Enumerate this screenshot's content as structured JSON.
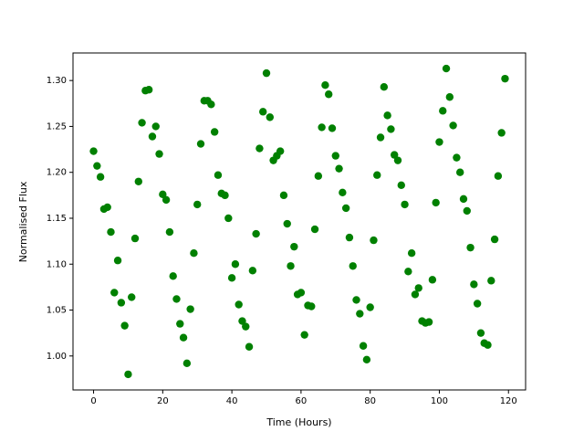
{
  "chart_data": {
    "type": "scatter",
    "xlabel": "Time (Hours)",
    "ylabel": "Normalised Flux",
    "color": "green",
    "x": [
      0,
      1,
      2,
      3,
      4,
      5,
      6,
      7,
      8,
      9,
      10,
      11,
      12,
      13,
      14,
      15,
      16,
      17,
      18,
      19,
      20,
      21,
      22,
      23,
      24,
      25,
      26,
      27,
      28,
      29,
      30,
      31,
      32,
      33,
      34,
      35,
      36,
      37,
      38,
      39,
      40,
      41,
      42,
      43,
      44,
      45,
      46,
      47,
      48,
      49,
      50,
      51,
      52,
      53,
      54,
      55,
      56,
      57,
      58,
      59,
      60,
      61,
      62,
      63,
      64,
      65,
      66,
      67,
      68,
      69,
      70,
      71,
      72,
      73,
      74,
      75,
      76,
      77,
      78,
      79,
      80,
      81,
      82,
      83,
      84,
      85,
      86,
      87,
      88,
      89,
      90,
      91,
      92,
      93,
      94,
      95,
      96,
      97,
      98,
      99,
      100,
      101,
      102,
      103,
      104,
      105,
      106,
      107,
      108,
      109,
      110,
      111,
      112,
      113,
      114,
      115,
      116,
      117,
      118,
      119
    ],
    "values": [
      1.223,
      1.207,
      1.195,
      1.16,
      1.162,
      1.135,
      1.069,
      1.104,
      1.058,
      1.033,
      0.98,
      1.064,
      1.128,
      1.19,
      1.254,
      1.289,
      1.29,
      1.239,
      1.25,
      1.22,
      1.176,
      1.17,
      1.135,
      1.087,
      1.062,
      1.035,
      1.02,
      0.992,
      1.051,
      1.112,
      1.165,
      1.231,
      1.278,
      1.278,
      1.274,
      1.244,
      1.197,
      1.177,
      1.175,
      1.15,
      1.085,
      1.1,
      1.056,
      1.038,
      1.032,
      1.01,
      1.093,
      1.133,
      1.226,
      1.266,
      1.308,
      1.26,
      1.213,
      1.218,
      1.223,
      1.175,
      1.144,
      1.098,
      1.119,
      1.067,
      1.069,
      1.023,
      1.055,
      1.054,
      1.138,
      1.196,
      1.249,
      1.295,
      1.285,
      1.248,
      1.218,
      1.204,
      1.178,
      1.161,
      1.129,
      1.098,
      1.061,
      1.046,
      1.011,
      0.996,
      1.053,
      1.126,
      1.197,
      1.238,
      1.293,
      1.262,
      1.247,
      1.219,
      1.213,
      1.186,
      1.165,
      1.092,
      1.112,
      1.067,
      1.074,
      1.038,
      1.036,
      1.037,
      1.083,
      1.167,
      1.233,
      1.267,
      1.313,
      1.282,
      1.251,
      1.216,
      1.2,
      1.171,
      1.158,
      1.118,
      1.078,
      1.057,
      1.025,
      1.014,
      1.012,
      1.082,
      1.127,
      1.196,
      1.243,
      1.302
    ],
    "xlim": [
      -5.95,
      124.95
    ],
    "ylim": [
      0.963,
      1.33
    ],
    "xticks": [
      0,
      20,
      40,
      60,
      80,
      100,
      120
    ],
    "yticks": [
      {
        "value": 1.0,
        "label": "1.00"
      },
      {
        "value": 1.05,
        "label": "1.05"
      },
      {
        "value": 1.1,
        "label": "1.10"
      },
      {
        "value": 1.15,
        "label": "1.15"
      },
      {
        "value": 1.2,
        "label": "1.20"
      },
      {
        "value": 1.25,
        "label": "1.25"
      },
      {
        "value": 1.3,
        "label": "1.30"
      }
    ]
  }
}
